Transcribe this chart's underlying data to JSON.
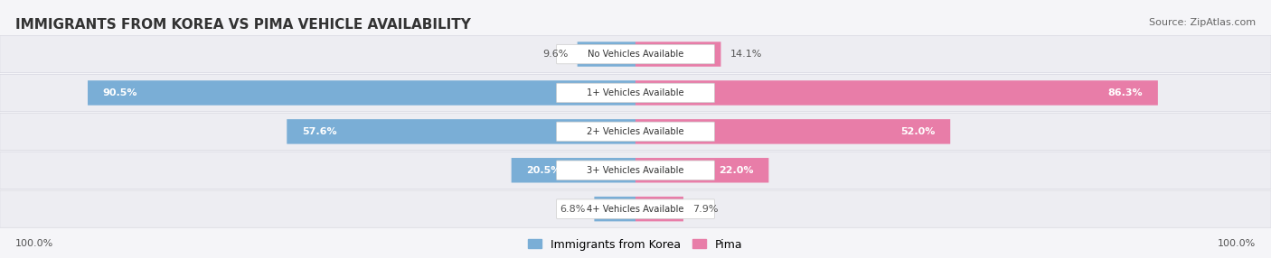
{
  "title": "IMMIGRANTS FROM KOREA VS PIMA VEHICLE AVAILABILITY",
  "source": "Source: ZipAtlas.com",
  "categories": [
    "No Vehicles Available",
    "1+ Vehicles Available",
    "2+ Vehicles Available",
    "3+ Vehicles Available",
    "4+ Vehicles Available"
  ],
  "korea_values": [
    9.6,
    90.5,
    57.6,
    20.5,
    6.8
  ],
  "pima_values": [
    14.1,
    86.3,
    52.0,
    22.0,
    7.9
  ],
  "korea_color": "#7aaed6",
  "korea_color_light": "#aacce8",
  "pima_color": "#e87da8",
  "pima_color_light": "#f0b0cc",
  "bar_bg_color": "#e8e8ee",
  "row_bg_color": "#f0f0f5",
  "title_fontsize": 11,
  "source_fontsize": 8,
  "label_fontsize": 8,
  "bar_label_fontsize": 8,
  "legend_fontsize": 9,
  "max_value": 100.0,
  "figsize": [
    14.06,
    2.86
  ],
  "dpi": 100
}
